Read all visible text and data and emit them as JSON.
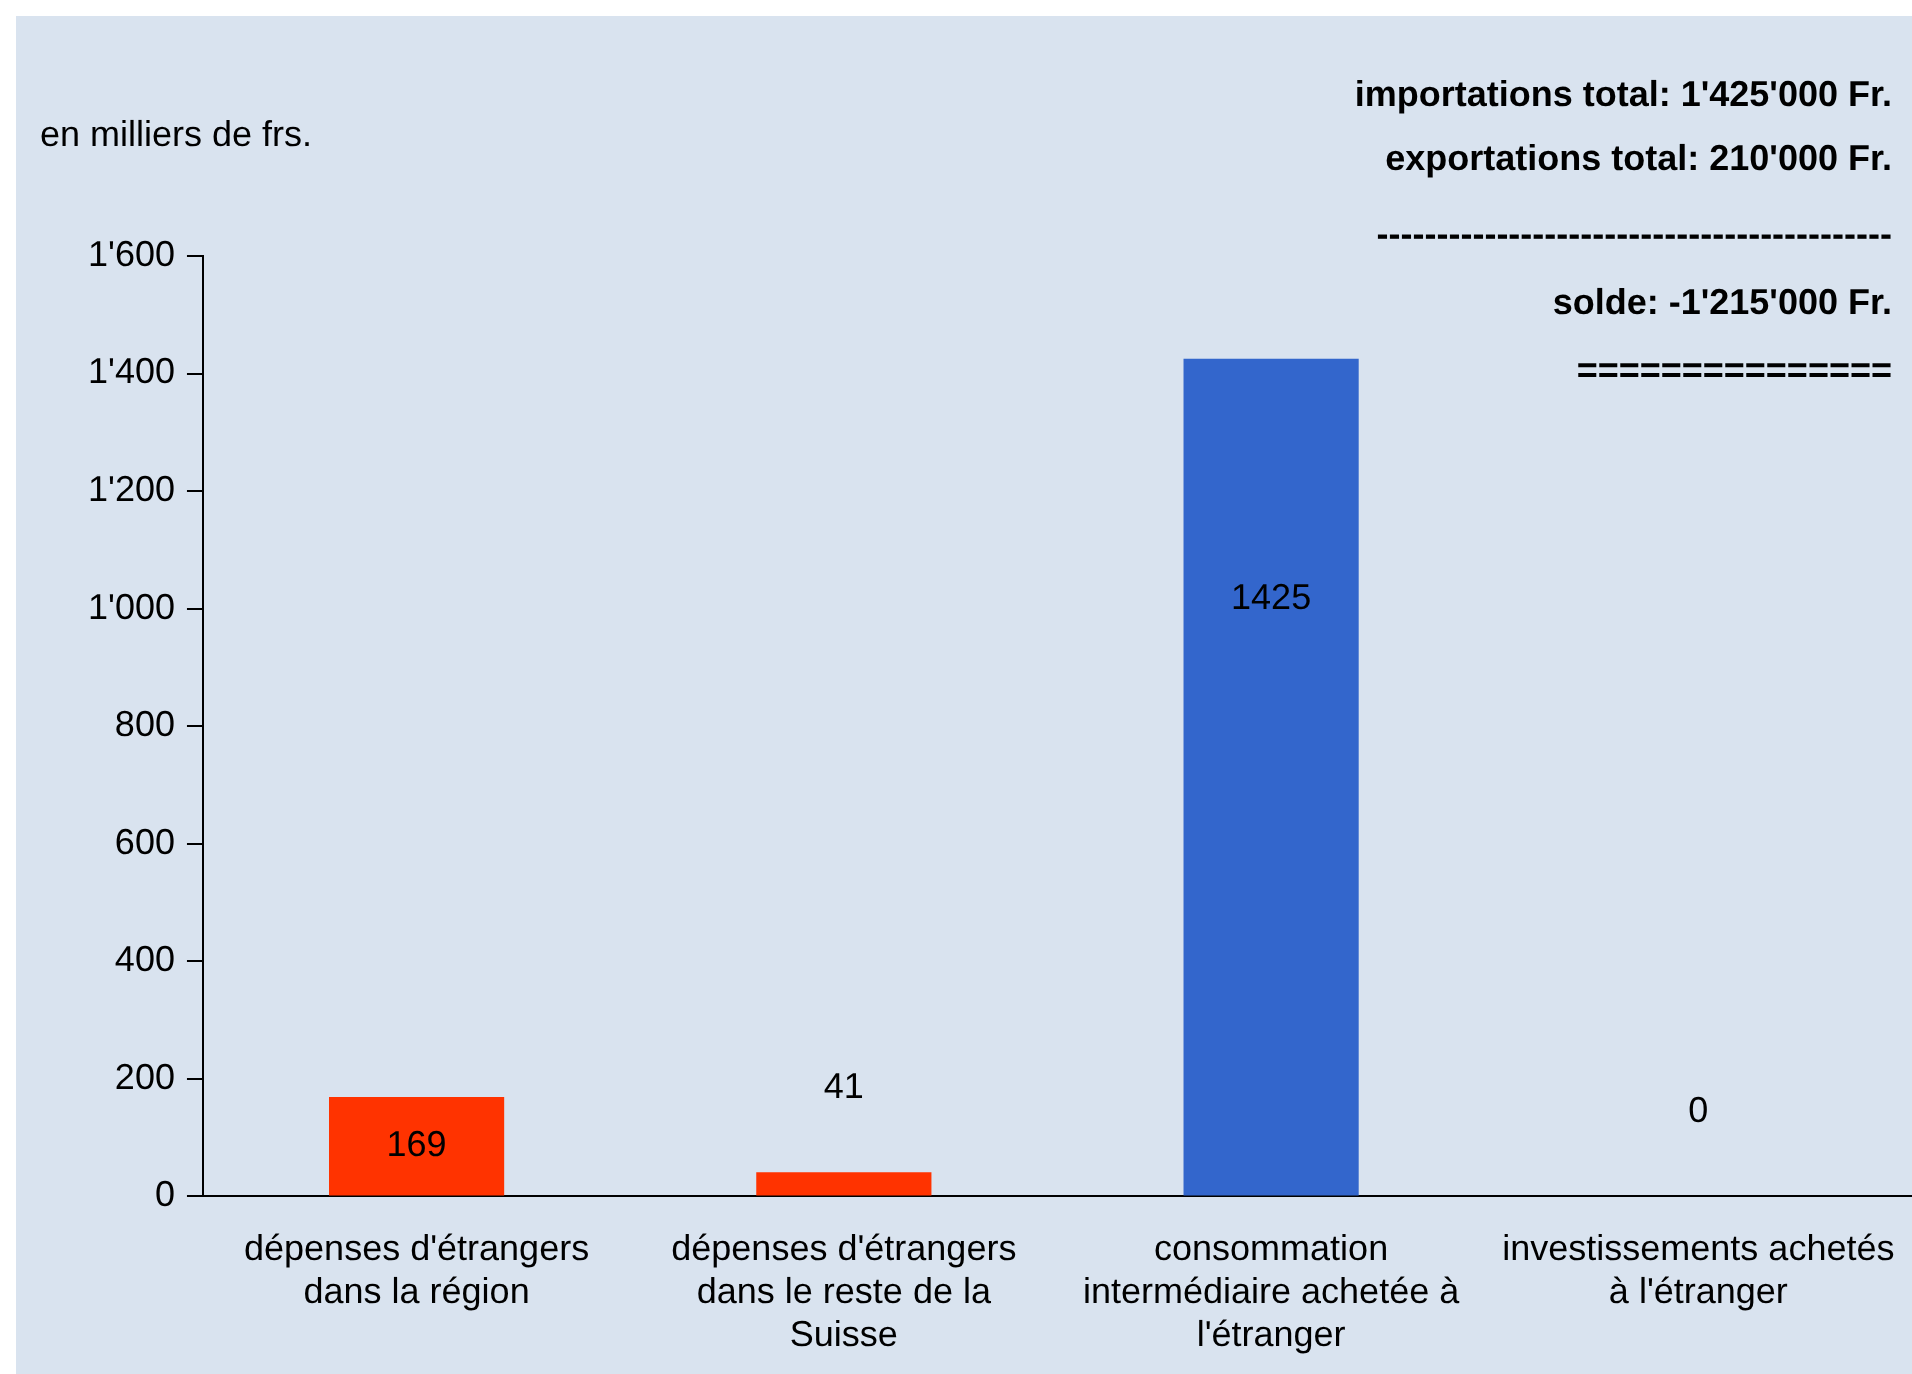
{
  "chart_data": {
    "type": "bar",
    "ylabel": "en milliers de frs.",
    "categories": [
      "dépenses d'étrangers dans la région",
      "dépenses d'étrangers dans le reste de la Suisse",
      "consommation intermédiaire achetée à l'étranger",
      "investissements achetés à l'étranger"
    ],
    "values": [
      169,
      41,
      1425,
      0
    ],
    "colors": [
      "#ff3300",
      "#ff3300",
      "#3366cc",
      "#3366cc"
    ],
    "ylim": [
      0,
      1600
    ],
    "yticks": [
      0,
      200,
      400,
      600,
      800,
      {
        "value": 1000,
        "label": "1'000"
      },
      {
        "value": 1200,
        "label": "1'200"
      },
      {
        "value": 1400,
        "label": "1'400"
      },
      {
        "value": 1600,
        "label": "1'600"
      }
    ],
    "data_labels": true,
    "grid": false,
    "legend": false,
    "annotations": [
      "importations total: 1'425'000 Fr.",
      "exportations total: 210'000 Fr.",
      "-------------------------------------------",
      "solde: -1'215'000 Fr.",
      "==============="
    ]
  }
}
